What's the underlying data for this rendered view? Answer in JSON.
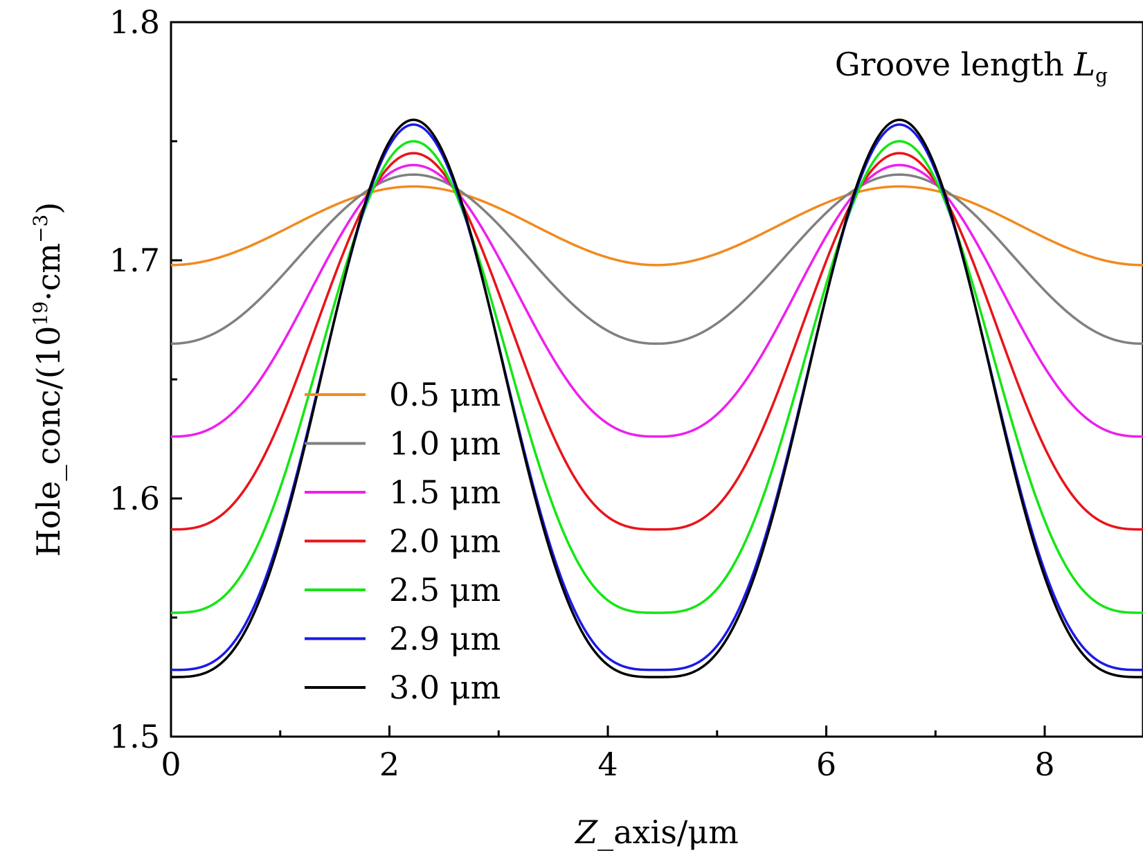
{
  "chart_data": {
    "type": "line",
    "annotation": {
      "text": "Groove length ",
      "symbol": "L",
      "subscript": "g"
    },
    "xlabel": {
      "symbol": "Z",
      "text": "_axis/μm"
    },
    "ylabel": {
      "prefix": "Hole_conc/(10",
      "exp1": "19",
      "middle": "·cm",
      "exp2": "−3",
      "suffix": ")"
    },
    "xlim": [
      0,
      8.9
    ],
    "ylim": [
      1.5,
      1.8
    ],
    "x_ticks": [
      0,
      2,
      4,
      6,
      8
    ],
    "x_tick_labels": [
      "0",
      "2",
      "4",
      "6",
      "8"
    ],
    "x_minor_ticks": [
      1,
      3,
      5,
      7
    ],
    "y_ticks": [
      1.5,
      1.6,
      1.7,
      1.8
    ],
    "y_tick_labels": [
      "1.5",
      "1.6",
      "1.7",
      "1.8"
    ],
    "y_minor_ticks": [
      1.55,
      1.65,
      1.75
    ],
    "legend_position": "lower-left",
    "grid": false,
    "series": [
      {
        "name": "0.5 μm",
        "color": "#f28a1e",
        "x": [
          0,
          2.22,
          4.45,
          6.67,
          8.9
        ],
        "y": [
          1.698,
          1.731,
          1.698,
          1.731,
          1.698
        ],
        "sharpness": 0
      },
      {
        "name": "1.0 μm",
        "color": "#808080",
        "x": [
          0,
          2.22,
          4.45,
          6.67,
          8.9
        ],
        "y": [
          1.665,
          1.736,
          1.665,
          1.736,
          1.665
        ],
        "sharpness": 0.1
      },
      {
        "name": "1.5 μm",
        "color": "#ee1fee",
        "x": [
          0,
          2.22,
          4.45,
          6.67,
          8.9
        ],
        "y": [
          1.626,
          1.74,
          1.626,
          1.74,
          1.626
        ],
        "sharpness": 0.3
      },
      {
        "name": "2.0 μm",
        "color": "#e8141a",
        "x": [
          0,
          2.22,
          4.45,
          6.67,
          8.9
        ],
        "y": [
          1.587,
          1.745,
          1.587,
          1.745,
          1.587
        ],
        "sharpness": 0.45
      },
      {
        "name": "2.5 μm",
        "color": "#14e614",
        "x": [
          0,
          2.22,
          4.45,
          6.67,
          8.9
        ],
        "y": [
          1.552,
          1.75,
          1.552,
          1.75,
          1.552
        ],
        "sharpness": 0.55
      },
      {
        "name": "2.9 μm",
        "color": "#1a1ae6",
        "x": [
          0,
          2.22,
          4.45,
          6.67,
          8.9
        ],
        "y": [
          1.528,
          1.757,
          1.528,
          1.757,
          1.528
        ],
        "sharpness": 0.62
      },
      {
        "name": "3.0 μm",
        "color": "#000000",
        "x": [
          0,
          2.22,
          4.45,
          6.67,
          8.9
        ],
        "y": [
          1.525,
          1.759,
          1.525,
          1.759,
          1.525
        ],
        "sharpness": 0.63
      }
    ]
  }
}
